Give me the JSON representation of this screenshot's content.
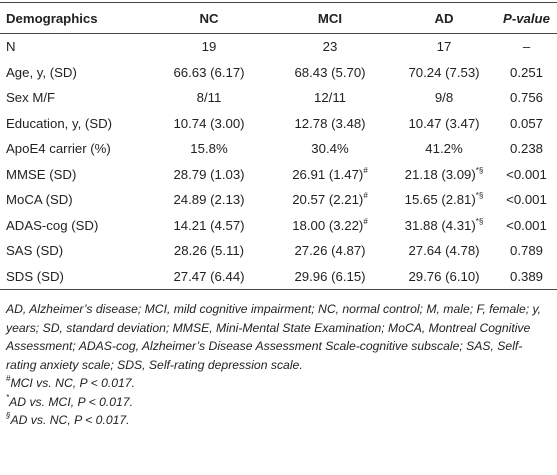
{
  "table": {
    "header": [
      "Demographics",
      "NC",
      "MCI",
      "AD",
      "P-value"
    ],
    "rows": [
      [
        "N",
        "19",
        "23",
        "17",
        "–"
      ],
      [
        "Age, y, (SD)",
        "66.63 (6.17)",
        "68.43 (5.70)",
        "70.24 (7.53)",
        "0.251"
      ],
      [
        "Sex M/F",
        "8/11",
        "12/11",
        "9/8",
        "0.756"
      ],
      [
        "Education, y, (SD)",
        "10.74 (3.00)",
        "12.78 (3.48)",
        "10.47 (3.47)",
        "0.057"
      ],
      [
        "ApoE4 carrier (%)",
        "15.8%",
        "30.4%",
        "41.2%",
        "0.238"
      ],
      [
        "MMSE (SD)",
        "28.79 (1.03)",
        {
          "text": "26.91 (1.47)",
          "sup": "#"
        },
        {
          "text": "21.18 (3.09)",
          "sup": "*§"
        },
        "<0.001"
      ],
      [
        "MoCA (SD)",
        "24.89 (2.13)",
        {
          "text": "20.57 (2.21)",
          "sup": "#"
        },
        {
          "text": "15.65 (2.81)",
          "sup": "*§"
        },
        "<0.001"
      ],
      [
        "ADAS-cog (SD)",
        "14.21 (4.57)",
        {
          "text": "18.00 (3.22)",
          "sup": "#"
        },
        {
          "text": "31.88 (4.31)",
          "sup": "*§"
        },
        "<0.001"
      ],
      [
        "SAS (SD)",
        "28.26 (5.11)",
        "27.26 (4.87)",
        "27.64 (4.78)",
        "0.789"
      ],
      [
        "SDS (SD)",
        "27.47 (6.44)",
        "29.96 (6.15)",
        "29.76 (6.10)",
        "0.389"
      ]
    ]
  },
  "footnotes": {
    "abbreviations": "AD, Alzheimer’s disease; MCI, mild cognitive impairment; NC, normal control; M, male; F, female; y, years; SD, standard deviation; MMSE, Mini-Mental State Examination; MoCA, Montreal Cognitive Assessment; ADAS-cog, Alzheimer’s Disease Assessment Scale-cognitive subscale; SAS, Self-rating anxiety scale; SDS, Self-rating depression scale.",
    "notes": [
      {
        "mark": "#",
        "text": "MCI vs. NC, P < 0.017."
      },
      {
        "mark": "*",
        "text": "AD vs. MCI, P < 0.017."
      },
      {
        "mark": "§",
        "text": "AD vs. NC, P < 0.017."
      }
    ]
  }
}
